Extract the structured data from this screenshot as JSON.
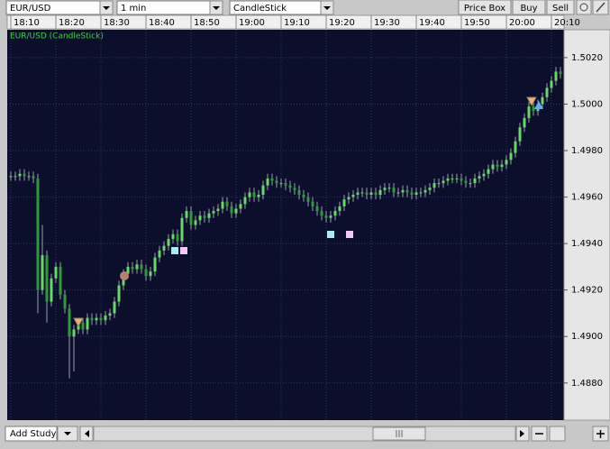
{
  "toolbar": {
    "symbol": "EUR/USD",
    "interval": "1 min",
    "chart_style": "CandleStick",
    "buttons": [
      "Price Box",
      "Buy",
      "Sell"
    ]
  },
  "bottom_bar": {
    "study_button": "Add Study"
  },
  "chart_data": {
    "type": "candlestick",
    "title": "EUR/USD (CandleStick)",
    "up_color": "#66d966",
    "down_color": "#2f9a3a",
    "wick_color": "#9aa0a8",
    "grid": true,
    "ylim": [
      1.4864,
      1.5032
    ],
    "yticks": [
      {
        "value": 1.488,
        "label": "1.4880"
      },
      {
        "value": 1.49,
        "label": "1.4900"
      },
      {
        "value": 1.492,
        "label": "1.4920"
      },
      {
        "value": 1.494,
        "label": "1.4940"
      },
      {
        "value": 1.496,
        "label": "1.4960"
      },
      {
        "value": 1.498,
        "label": "1.4980"
      },
      {
        "value": 1.5,
        "label": "1.5000"
      },
      {
        "value": 1.502,
        "label": "1.5020"
      }
    ],
    "xticks": [
      "18:10",
      "18:20",
      "18:30",
      "18:40",
      "18:50",
      "19:00",
      "19:10",
      "19:20",
      "19:30",
      "19:40",
      "19:50",
      "20:00",
      "20:10"
    ],
    "x": [
      "18:10",
      "18:11",
      "18:12",
      "18:13",
      "18:14",
      "18:15",
      "18:16",
      "18:17",
      "18:18",
      "18:19",
      "18:20",
      "18:21",
      "18:22",
      "18:23",
      "18:24",
      "18:25",
      "18:26",
      "18:27",
      "18:28",
      "18:29",
      "18:30",
      "18:31",
      "18:32",
      "18:33",
      "18:34",
      "18:35",
      "18:36",
      "18:37",
      "18:38",
      "18:39",
      "18:40",
      "18:41",
      "18:42",
      "18:43",
      "18:44",
      "18:45",
      "18:46",
      "18:47",
      "18:48",
      "18:49",
      "18:50",
      "18:51",
      "18:52",
      "18:53",
      "18:54",
      "18:55",
      "18:56",
      "18:57",
      "18:58",
      "18:59",
      "19:00",
      "19:01",
      "19:02",
      "19:03",
      "19:04",
      "19:05",
      "19:06",
      "19:07",
      "19:08",
      "19:09",
      "19:10",
      "19:11",
      "19:12",
      "19:13",
      "19:14",
      "19:15",
      "19:16",
      "19:17",
      "19:18",
      "19:19",
      "19:20",
      "19:21",
      "19:22",
      "19:23",
      "19:24",
      "19:25",
      "19:26",
      "19:27",
      "19:28",
      "19:29",
      "19:30",
      "19:31",
      "19:32",
      "19:33",
      "19:34",
      "19:35",
      "19:36",
      "19:37",
      "19:38",
      "19:39",
      "19:40",
      "19:41",
      "19:42",
      "19:43",
      "19:44",
      "19:45",
      "19:46",
      "19:47",
      "19:48",
      "19:49",
      "19:50",
      "19:51",
      "19:52",
      "19:53",
      "19:54",
      "19:55",
      "19:56",
      "19:57",
      "19:58",
      "19:59",
      "20:00",
      "20:01",
      "20:02",
      "20:03",
      "20:04",
      "20:05",
      "20:06",
      "20:07",
      "20:08",
      "20:09",
      "20:10",
      "20:11",
      "20:12"
    ],
    "open": [
      1.4969,
      1.4969,
      1.4969,
      1.497,
      1.4969,
      1.4969,
      1.4968,
      1.492,
      1.4935,
      1.4915,
      1.4925,
      1.493,
      1.4918,
      1.4912,
      1.49,
      1.4903,
      1.4906,
      1.4903,
      1.4908,
      1.4907,
      1.4908,
      1.4907,
      1.4909,
      1.491,
      1.4915,
      1.4922,
      1.4927,
      1.493,
      1.4929,
      1.4931,
      1.4929,
      1.4926,
      1.4928,
      1.4934,
      1.4937,
      1.4939,
      1.4942,
      1.4944,
      1.4941,
      1.4951,
      1.4954,
      1.4948,
      1.495,
      1.4952,
      1.4951,
      1.4953,
      1.4954,
      1.4955,
      1.4958,
      1.4956,
      1.4953,
      1.4955,
      1.4957,
      1.496,
      1.4962,
      1.496,
      1.4961,
      1.4965,
      1.4968,
      1.4967,
      1.4966,
      1.4966,
      1.4965,
      1.4964,
      1.4963,
      1.4961,
      1.496,
      1.4958,
      1.4956,
      1.4954,
      1.4952,
      1.4951,
      1.4952,
      1.4954,
      1.4956,
      1.4959,
      1.496,
      1.4961,
      1.4962,
      1.4962,
      1.4961,
      1.4962,
      1.4961,
      1.4963,
      1.4964,
      1.4964,
      1.4962,
      1.4962,
      1.4963,
      1.4962,
      1.4961,
      1.4962,
      1.4962,
      1.4963,
      1.4964,
      1.4966,
      1.4966,
      1.4967,
      1.4968,
      1.4968,
      1.4968,
      1.4967,
      1.4966,
      1.4966,
      1.4968,
      1.4969,
      1.497,
      1.4972,
      1.4974,
      1.4973,
      1.4974,
      1.4976,
      1.4979,
      1.4984,
      1.499,
      1.4994,
      1.4999,
      1.4997,
      1.5,
      1.5003,
      1.5007,
      1.501,
      1.5014
    ],
    "high": [
      1.4971,
      1.4971,
      1.4972,
      1.4972,
      1.4971,
      1.4971,
      1.497,
      1.4948,
      1.4937,
      1.4927,
      1.4932,
      1.4932,
      1.492,
      1.4914,
      1.4905,
      1.4908,
      1.4908,
      1.491,
      1.491,
      1.491,
      1.491,
      1.4911,
      1.4912,
      1.4917,
      1.4924,
      1.4929,
      1.4932,
      1.4932,
      1.4933,
      1.4933,
      1.4931,
      1.493,
      1.4936,
      1.4939,
      1.4941,
      1.4944,
      1.4946,
      1.4946,
      1.4953,
      1.4956,
      1.4956,
      1.4952,
      1.4954,
      1.4954,
      1.4955,
      1.4956,
      1.4957,
      1.496,
      1.496,
      1.4958,
      1.4957,
      1.4959,
      1.4962,
      1.4964,
      1.4964,
      1.4963,
      1.4967,
      1.497,
      1.497,
      1.4969,
      1.4968,
      1.4968,
      1.4967,
      1.4966,
      1.4965,
      1.4963,
      1.4962,
      1.496,
      1.4958,
      1.4956,
      1.4954,
      1.4954,
      1.4956,
      1.4958,
      1.4961,
      1.4962,
      1.4963,
      1.4964,
      1.4964,
      1.4964,
      1.4964,
      1.4964,
      1.4965,
      1.4966,
      1.4966,
      1.4966,
      1.4964,
      1.4965,
      1.4965,
      1.4964,
      1.4964,
      1.4964,
      1.4965,
      1.4966,
      1.4968,
      1.4968,
      1.4969,
      1.497,
      1.497,
      1.497,
      1.497,
      1.4969,
      1.4968,
      1.497,
      1.4971,
      1.4972,
      1.4974,
      1.4976,
      1.4976,
      1.4976,
      1.4978,
      1.4981,
      1.4986,
      1.4992,
      1.4996,
      1.5001,
      1.5001,
      1.5002,
      1.5005,
      1.5009,
      1.5012,
      1.5016,
      1.5016
    ],
    "low": [
      1.4967,
      1.4967,
      1.4967,
      1.4967,
      1.4967,
      1.4966,
      1.491,
      1.4918,
      1.4906,
      1.4913,
      1.4923,
      1.4916,
      1.491,
      1.4882,
      1.4885,
      1.4901,
      1.4901,
      1.4901,
      1.4905,
      1.4905,
      1.4905,
      1.4905,
      1.4907,
      1.4908,
      1.4913,
      1.492,
      1.4925,
      1.4927,
      1.4927,
      1.4927,
      1.4924,
      1.4924,
      1.4926,
      1.4932,
      1.4935,
      1.4937,
      1.494,
      1.4939,
      1.4939,
      1.4949,
      1.4946,
      1.4946,
      1.4948,
      1.4949,
      1.4949,
      1.4951,
      1.4952,
      1.4953,
      1.4954,
      1.4951,
      1.4951,
      1.4953,
      1.4955,
      1.4958,
      1.4958,
      1.4958,
      1.4959,
      1.4963,
      1.4965,
      1.4964,
      1.4964,
      1.4963,
      1.4962,
      1.4961,
      1.4959,
      1.4958,
      1.4956,
      1.4954,
      1.4952,
      1.495,
      1.4949,
      1.4949,
      1.495,
      1.4952,
      1.4954,
      1.4957,
      1.4958,
      1.4959,
      1.496,
      1.4959,
      1.4959,
      1.4959,
      1.4959,
      1.4961,
      1.4962,
      1.496,
      1.496,
      1.496,
      1.496,
      1.4959,
      1.4959,
      1.496,
      1.496,
      1.4961,
      1.4962,
      1.4964,
      1.4964,
      1.4965,
      1.4966,
      1.4966,
      1.4965,
      1.4964,
      1.4964,
      1.4964,
      1.4966,
      1.4967,
      1.4968,
      1.497,
      1.4971,
      1.4971,
      1.4972,
      1.4974,
      1.4977,
      1.4982,
      1.4988,
      1.4992,
      1.4995,
      1.4995,
      1.4998,
      1.5001,
      1.5005,
      1.5008,
      1.5011
    ],
    "close": [
      1.4969,
      1.4969,
      1.497,
      1.4969,
      1.4969,
      1.4968,
      1.492,
      1.4935,
      1.4915,
      1.4925,
      1.493,
      1.4918,
      1.4912,
      1.49,
      1.4903,
      1.4906,
      1.4903,
      1.4908,
      1.4907,
      1.4908,
      1.4907,
      1.4909,
      1.491,
      1.4915,
      1.4922,
      1.4927,
      1.493,
      1.4929,
      1.4931,
      1.4929,
      1.4926,
      1.4928,
      1.4934,
      1.4937,
      1.4939,
      1.4942,
      1.4944,
      1.4941,
      1.4951,
      1.4954,
      1.4948,
      1.495,
      1.4952,
      1.4951,
      1.4953,
      1.4954,
      1.4955,
      1.4958,
      1.4956,
      1.4953,
      1.4955,
      1.4957,
      1.496,
      1.4962,
      1.496,
      1.4961,
      1.4965,
      1.4968,
      1.4967,
      1.4966,
      1.4966,
      1.4965,
      1.4964,
      1.4963,
      1.4961,
      1.496,
      1.4958,
      1.4956,
      1.4954,
      1.4952,
      1.4951,
      1.4952,
      1.4954,
      1.4956,
      1.4959,
      1.496,
      1.4961,
      1.4962,
      1.4962,
      1.4961,
      1.4962,
      1.4961,
      1.4963,
      1.4964,
      1.4964,
      1.4962,
      1.4962,
      1.4963,
      1.4962,
      1.4961,
      1.4962,
      1.4962,
      1.4963,
      1.4964,
      1.4966,
      1.4966,
      1.4967,
      1.4968,
      1.4968,
      1.4968,
      1.4967,
      1.4966,
      1.4966,
      1.4968,
      1.4969,
      1.497,
      1.4972,
      1.4974,
      1.4973,
      1.4974,
      1.4976,
      1.4979,
      1.4984,
      1.499,
      1.4994,
      1.4999,
      1.4997,
      1.5,
      1.5003,
      1.5007,
      1.501,
      1.5014,
      1.5013
    ]
  }
}
